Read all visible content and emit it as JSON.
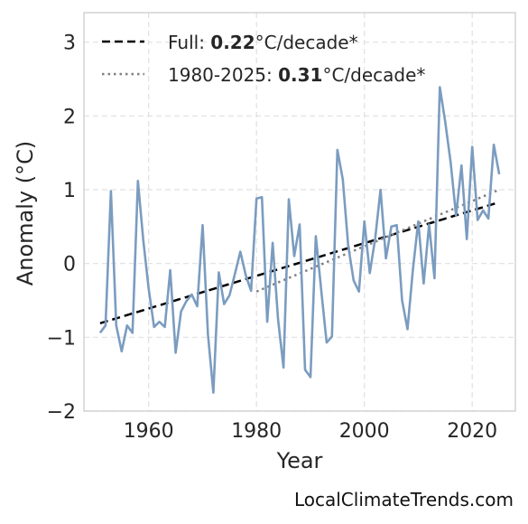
{
  "chart_data": {
    "type": "line",
    "title": "",
    "xlabel": "Year",
    "ylabel": "Anomaly (°C)",
    "xlim": [
      1948,
      2028
    ],
    "ylim": [
      -2,
      3.4
    ],
    "xticks": [
      1960,
      1980,
      2000,
      2020
    ],
    "xtick_labels": [
      "1960",
      "1980",
      "2000",
      "2020"
    ],
    "yticks": [
      -2,
      -1,
      0,
      1,
      2,
      3
    ],
    "ytick_labels": [
      "−2",
      "−1",
      "0",
      "1",
      "2",
      "3"
    ],
    "grid": true,
    "legend_position": "top-left",
    "x": [
      1951,
      1952,
      1953,
      1954,
      1955,
      1956,
      1957,
      1958,
      1959,
      1960,
      1961,
      1962,
      1963,
      1964,
      1965,
      1966,
      1967,
      1968,
      1969,
      1970,
      1971,
      1972,
      1973,
      1974,
      1975,
      1976,
      1977,
      1978,
      1979,
      1980,
      1981,
      1982,
      1983,
      1984,
      1985,
      1986,
      1987,
      1988,
      1989,
      1990,
      1991,
      1992,
      1993,
      1994,
      1995,
      1996,
      1997,
      1998,
      1999,
      2000,
      2001,
      2002,
      2003,
      2004,
      2005,
      2006,
      2007,
      2008,
      2009,
      2010,
      2011,
      2012,
      2013,
      2014,
      2015,
      2016,
      2017,
      2018,
      2019,
      2020,
      2021,
      2022,
      2023,
      2024,
      2025
    ],
    "series": [
      {
        "values": [
          -0.94,
          -0.84,
          0.98,
          -0.84,
          -1.19,
          -0.84,
          -0.94,
          1.12,
          0.32,
          -0.34,
          -0.86,
          -0.79,
          -0.86,
          -0.09,
          -1.21,
          -0.65,
          -0.51,
          -0.42,
          -0.58,
          0.52,
          -0.96,
          -1.75,
          -0.12,
          -0.55,
          -0.43,
          -0.14,
          0.16,
          -0.16,
          -0.37,
          0.88,
          0.9,
          -0.79,
          0.28,
          -0.76,
          -1.41,
          0.87,
          0.1,
          0.53,
          -1.44,
          -1.54,
          0.37,
          -0.36,
          -1.07,
          -0.99,
          1.54,
          1.14,
          0.24,
          -0.23,
          -0.38,
          0.57,
          -0.13,
          0.34,
          1.0,
          0.07,
          0.5,
          0.52,
          -0.5,
          -0.89,
          -0.08,
          0.57,
          -0.27,
          0.53,
          -0.2,
          2.39,
          1.92,
          1.37,
          0.65,
          1.33,
          0.33,
          1.58,
          0.59,
          0.72,
          0.61,
          1.61,
          1.21
        ],
        "color": "#7b9cc0"
      }
    ],
    "trends": [
      {
        "label_prefix": "Full: ",
        "label_value": "0.22",
        "label_suffix": "°C/decade*",
        "x": [
          1951,
          2025
        ],
        "y": [
          -0.81,
          0.83
        ],
        "color": "#000000",
        "style": "dashed"
      },
      {
        "label_prefix": "1980-2025: ",
        "label_value": "0.31",
        "label_suffix": "°C/decade*",
        "x": [
          1980,
          2025
        ],
        "y": [
          -0.38,
          1.0
        ],
        "color": "#808080",
        "style": "dotted"
      }
    ]
  },
  "watermark": "LocalClimateTrends.com"
}
